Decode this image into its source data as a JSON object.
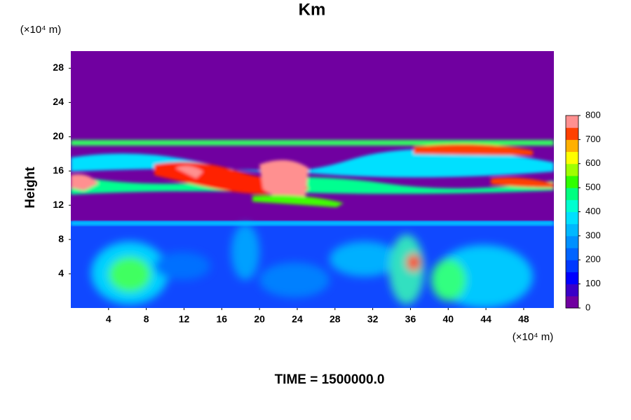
{
  "chart_data": {
    "type": "contour",
    "title": "Km",
    "y_label": "Height",
    "x_unit": "(×10⁴ m)",
    "y_unit": "(×10⁴ m)",
    "annotation": "TIME = 1500000.0",
    "xlim": [
      0,
      51.2
    ],
    "xticks": [
      4,
      8,
      12,
      16,
      20,
      24,
      28,
      32,
      36,
      40,
      44,
      48
    ],
    "ylim": [
      0,
      30
    ],
    "yticks": [
      4,
      8,
      12,
      16,
      20,
      24,
      28
    ],
    "clim": [
      0,
      800
    ],
    "cticks": [
      0,
      100,
      200,
      300,
      400,
      500,
      600,
      700,
      800
    ],
    "colorbar_colors": [
      "#7000a0",
      "#3a00c8",
      "#0000ff",
      "#0038ff",
      "#0064ff",
      "#0090ff",
      "#00b8ff",
      "#00e0ff",
      "#00ffd0",
      "#00ff80",
      "#30ff00",
      "#a0ff00",
      "#ffff00",
      "#ffb000",
      "#ff4000",
      "#ff9090"
    ]
  }
}
